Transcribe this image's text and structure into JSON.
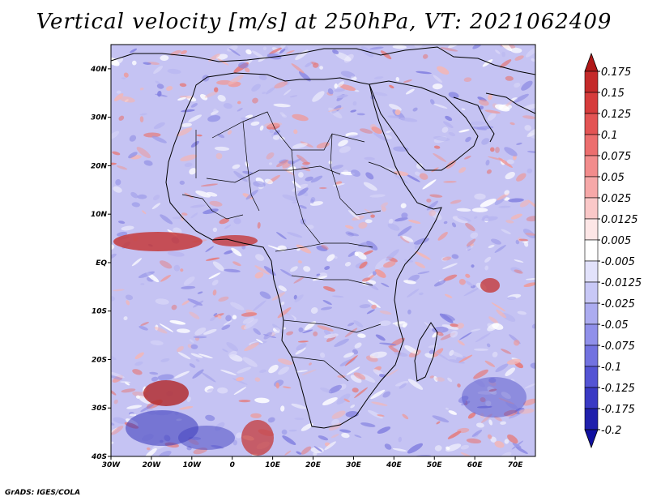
{
  "title": "Vertical velocity [m/s] at 250hPa, VT: 2021062409",
  "credit": "GrADS: IGES/COLA",
  "map": {
    "lon_range": [
      -30,
      75
    ],
    "lat_range": [
      -40,
      45
    ],
    "x_ticks": [
      "30W",
      "20W",
      "10W",
      "0",
      "10E",
      "20E",
      "30E",
      "40E",
      "50E",
      "60E",
      "70E"
    ],
    "y_ticks": [
      "40N",
      "30N",
      "20N",
      "10N",
      "EQ",
      "10S",
      "20S",
      "30S",
      "40S"
    ]
  },
  "colorbar": {
    "labels": [
      "0.175",
      "0.15",
      "0.125",
      "0.1",
      "0.075",
      "0.05",
      "0.025",
      "0.0125",
      "0.005",
      "-0.005",
      "-0.0125",
      "-0.025",
      "-0.05",
      "-0.075",
      "-0.1",
      "-0.125",
      "-0.175",
      "-0.2"
    ],
    "colors": [
      "#b01818",
      "#c42a2a",
      "#d63c3c",
      "#e35454",
      "#ec6e6e",
      "#f28c8c",
      "#f6a8a8",
      "#fac8c8",
      "#fde6e6",
      "#ffffff",
      "#e2e2fb",
      "#c8c8f6",
      "#acacf0",
      "#9090ea",
      "#7272e0",
      "#5454d4",
      "#3a3ac4",
      "#2020ac",
      "#1010a0"
    ]
  }
}
